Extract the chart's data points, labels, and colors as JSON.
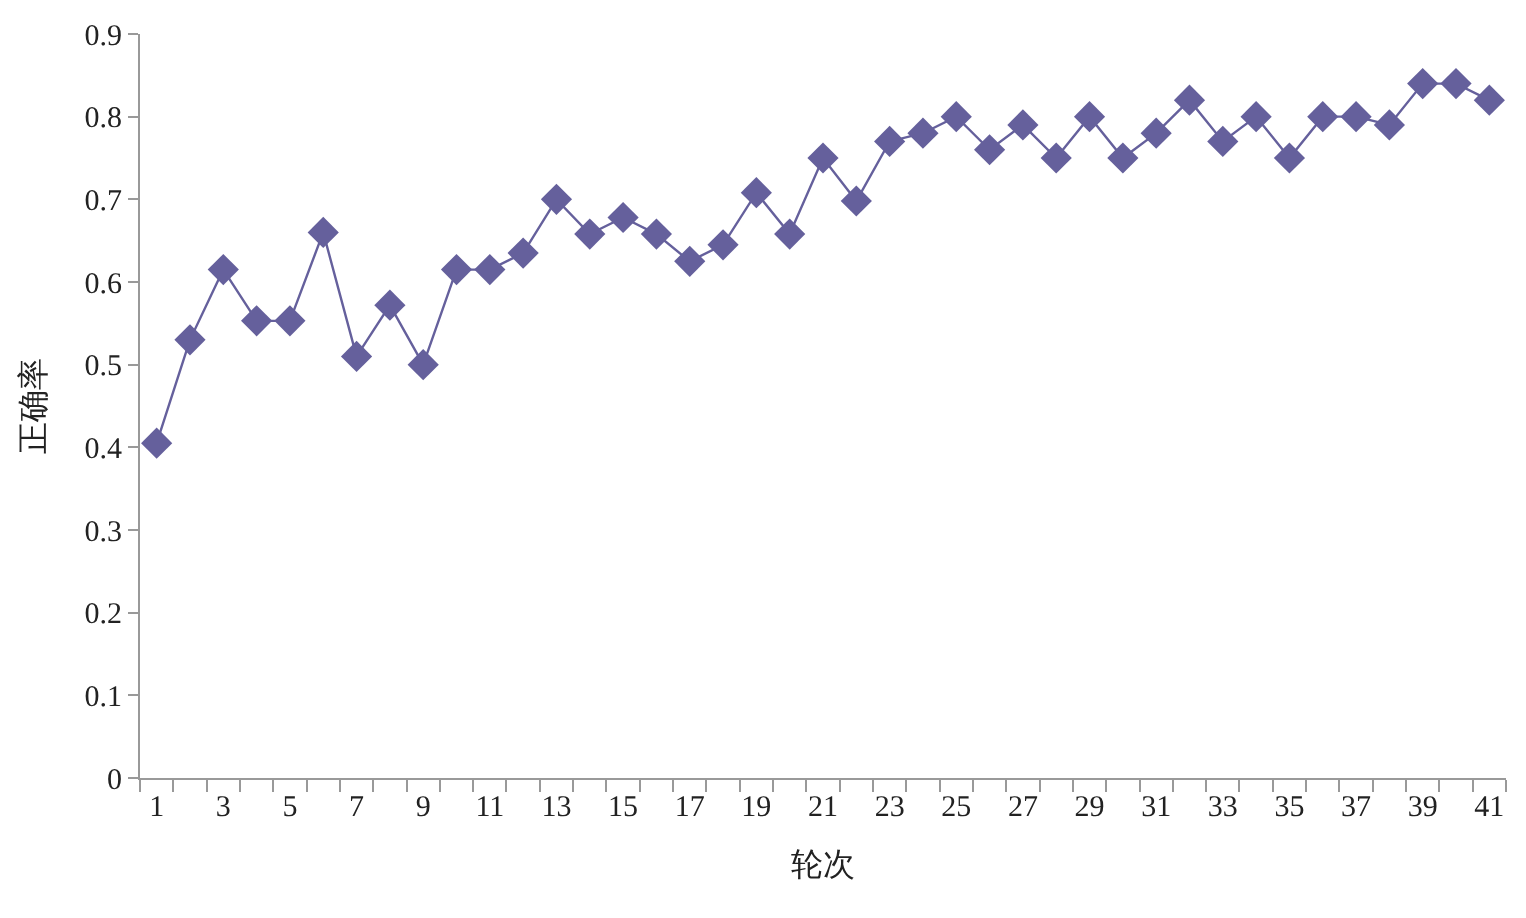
{
  "chart_data": {
    "type": "line",
    "xlabel": "轮次",
    "ylabel": "正确率",
    "x": [
      1,
      2,
      3,
      4,
      5,
      6,
      7,
      8,
      9,
      10,
      11,
      12,
      13,
      14,
      15,
      16,
      17,
      18,
      19,
      20,
      21,
      22,
      23,
      24,
      25,
      26,
      27,
      28,
      29,
      30,
      31,
      32,
      33,
      34,
      35,
      36,
      37,
      38,
      39,
      40,
      41
    ],
    "series": [
      {
        "color": "#65609c",
        "values": [
          0.405,
          0.53,
          0.615,
          0.553,
          0.553,
          0.66,
          0.51,
          0.572,
          0.5,
          0.615,
          0.615,
          0.635,
          0.7,
          0.658,
          0.678,
          0.658,
          0.625,
          0.645,
          0.708,
          0.658,
          0.75,
          0.698,
          0.77,
          0.78,
          0.8,
          0.76,
          0.79,
          0.75,
          0.8,
          0.75,
          0.78,
          0.82,
          0.77,
          0.8,
          0.75,
          0.8,
          0.8,
          0.79,
          0.84,
          0.84,
          0.82
        ]
      }
    ],
    "xlim": [
      0.5,
      41.5
    ],
    "xticks": [
      1,
      3,
      5,
      7,
      9,
      11,
      13,
      15,
      17,
      19,
      21,
      23,
      25,
      27,
      29,
      31,
      33,
      35,
      37,
      39,
      41
    ],
    "ylim": [
      0,
      0.9
    ],
    "yticks": [
      0,
      0.1,
      0.2,
      0.3,
      0.4,
      0.5,
      0.6,
      0.7,
      0.8,
      0.9
    ],
    "grid": false,
    "marker": "diamond",
    "line_style": "solid"
  }
}
